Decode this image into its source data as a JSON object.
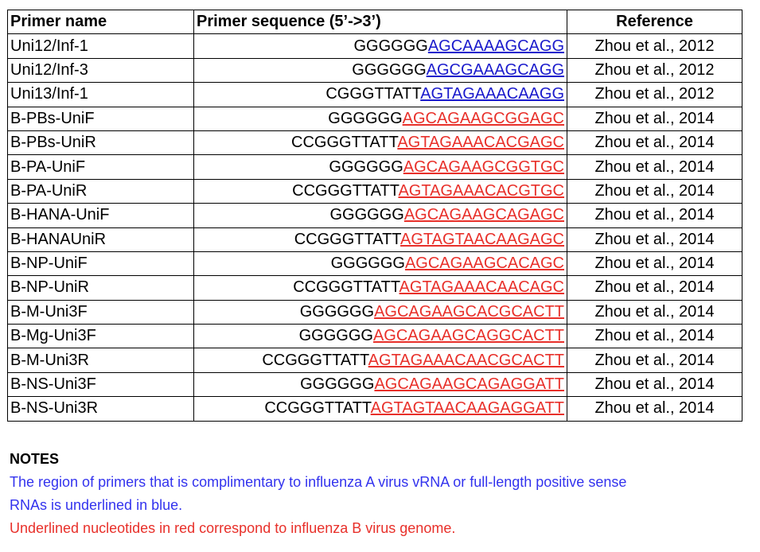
{
  "table": {
    "headers": {
      "name": "Primer name",
      "sequence": "Primer sequence (5’->3’)",
      "reference": "Reference"
    },
    "rows": [
      {
        "name": "Uni12/Inf-1",
        "seq_prefix": "GGGGGG",
        "seq_marked": "AGCAAAAGCAGG",
        "mark_color": "#1a1acc",
        "reference": "Zhou et al., 2012"
      },
      {
        "name": "Uni12/Inf-3",
        "seq_prefix": "GGGGGG",
        "seq_marked": "AGCGAAAGCAGG",
        "mark_color": "#1a1acc",
        "reference": "Zhou et al., 2012"
      },
      {
        "name": "Uni13/Inf-1",
        "seq_prefix": "CGGGTTATT",
        "seq_marked": "AGTAGAAACAAGG",
        "mark_color": "#1a1acc",
        "reference": "Zhou et al., 2012"
      },
      {
        "name": "B-PBs-UniF",
        "seq_prefix": "GGGGGG",
        "seq_marked": "AGCAGAAGCGGAGC",
        "mark_color": "#e8302a",
        "reference": "Zhou et al., 2014"
      },
      {
        "name": "B-PBs-UniR",
        "seq_prefix": "CCGGGTTATT",
        "seq_marked": "AGTAGAAACACGAGC",
        "mark_color": "#e8302a",
        "reference": "Zhou et al., 2014"
      },
      {
        "name": "B-PA-UniF",
        "seq_prefix": "GGGGGG",
        "seq_marked": "AGCAGAAGCGGTGC",
        "mark_color": "#e8302a",
        "reference": "Zhou et al., 2014"
      },
      {
        "name": "B-PA-UniR",
        "seq_prefix": "CCGGGTTATT",
        "seq_marked": "AGTAGAAACACGTGC",
        "mark_color": "#e8302a",
        "reference": "Zhou et al., 2014"
      },
      {
        "name": "B-HANA-UniF",
        "seq_prefix": "GGGGGG",
        "seq_marked": "AGCAGAAGCAGAGC",
        "mark_color": "#e8302a",
        "reference": "Zhou et al., 2014"
      },
      {
        "name": "B-HANAUniR",
        "seq_prefix": "CCGGGTTATT",
        "seq_marked": "AGTAGTAACAAGAGC",
        "mark_color": "#e8302a",
        "reference": "Zhou et al., 2014"
      },
      {
        "name": "B-NP-UniF",
        "seq_prefix": "GGGGGG",
        "seq_marked": "AGCAGAAGCACAGC",
        "mark_color": "#e8302a",
        "reference": "Zhou et al., 2014"
      },
      {
        "name": "B-NP-UniR",
        "seq_prefix": "CCGGGTTATT",
        "seq_marked": "AGTAGAAACAACAGC",
        "mark_color": "#e8302a",
        "reference": "Zhou et al., 2014"
      },
      {
        "name": "B-M-Uni3F",
        "seq_prefix": "GGGGGG",
        "seq_marked": "AGCAGAAGCACGCACTT",
        "mark_color": "#e8302a",
        "reference": "Zhou et al., 2014"
      },
      {
        "name": "B-Mg-Uni3F",
        "seq_prefix": "GGGGGG",
        "seq_marked": "AGCAGAAGCAGGCACTT",
        "mark_color": "#e8302a",
        "reference": "Zhou et al., 2014"
      },
      {
        "name": "B-M-Uni3R",
        "seq_prefix": "CCGGGTTATT",
        "seq_marked": "AGTAGAAACAACGCACTT",
        "mark_color": "#e8302a",
        "reference": "Zhou et al., 2014"
      },
      {
        "name": "B-NS-Uni3F",
        "seq_prefix": "GGGGGG",
        "seq_marked": "AGCAGAAGCAGAGGATT",
        "mark_color": "#e8302a",
        "reference": "Zhou et al., 2014"
      },
      {
        "name": "B-NS-Uni3R",
        "seq_prefix": "CCGGGTTATT",
        "seq_marked": "AGTAGTAACAAGAGGATT",
        "mark_color": "#e8302a",
        "reference": "Zhou et al., 2014"
      }
    ]
  },
  "notes": {
    "title": "NOTES",
    "blue_note_line1": "The region of primers that is complimentary to influenza A virus vRNA or full-length positive sense",
    "blue_note_line2": "RNAs is underlined in blue.",
    "red_note": "Underlined nucleotides in red correspond to influenza B virus genome.",
    "colors": {
      "blue": "#3333ee",
      "red": "#e8302a"
    }
  }
}
